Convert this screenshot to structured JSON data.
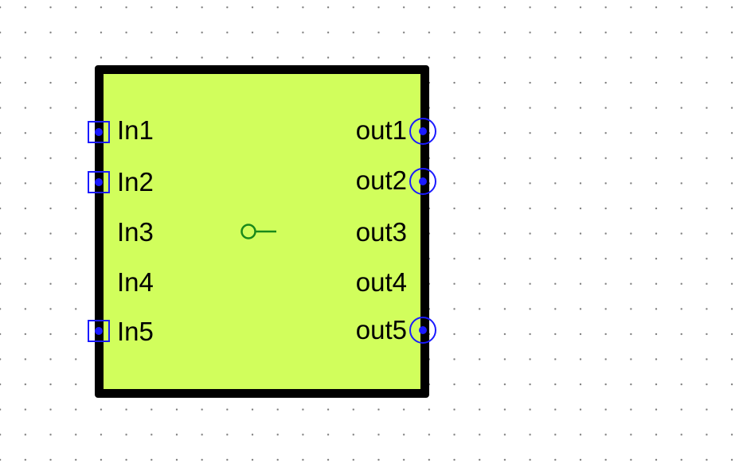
{
  "block": {
    "fill_color": "#d1fe5c",
    "border_color": "#000000",
    "inputs": [
      {
        "label": "In1",
        "connected": true
      },
      {
        "label": "In2",
        "connected": true
      },
      {
        "label": "In3",
        "connected": false
      },
      {
        "label": "In4",
        "connected": false
      },
      {
        "label": "In5",
        "connected": true
      }
    ],
    "outputs": [
      {
        "label": "out1",
        "connected": true
      },
      {
        "label": "out2",
        "connected": true
      },
      {
        "label": "out3",
        "connected": false
      },
      {
        "label": "out4",
        "connected": false
      },
      {
        "label": "out5",
        "connected": true
      }
    ],
    "port_marker_color": "#1a1aff",
    "center_symbol": {
      "icon": "open-circle-line-icon",
      "color": "#1a8a1a"
    }
  },
  "canvas": {
    "grid_dots": true,
    "grid_color": "#7d7d7d"
  }
}
